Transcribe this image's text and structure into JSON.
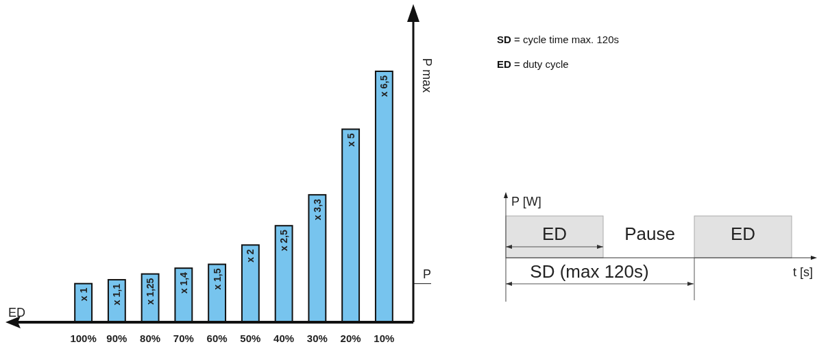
{
  "chart_data": [
    {
      "type": "bar",
      "xlabel": "ED",
      "ylabel": "P max",
      "categories": [
        "100%",
        "90%",
        "80%",
        "70%",
        "60%",
        "50%",
        "40%",
        "30%",
        "20%",
        "10%"
      ],
      "values": [
        1,
        1.1,
        1.25,
        1.4,
        1.5,
        2,
        2.5,
        3.3,
        5,
        6.5
      ],
      "value_labels": [
        "x 1",
        "x 1,1",
        "x 1,25",
        "x 1,4",
        "x 1,5",
        "x 2",
        "x 2,5",
        "x 3,3",
        "x 5",
        "x 6,5"
      ],
      "color": "#77c4ee",
      "ref_lines": [
        {
          "axis": "y",
          "value": 1,
          "label": "P"
        }
      ]
    },
    {
      "type": "other",
      "ylabel": "P [W]",
      "xlabel": "t [s]",
      "annotations": [
        "SD = cycle time max. 120s",
        "ED = duty cycle",
        "ED",
        "Pause",
        "ED",
        "SD (max 120s)"
      ]
    }
  ]
}
